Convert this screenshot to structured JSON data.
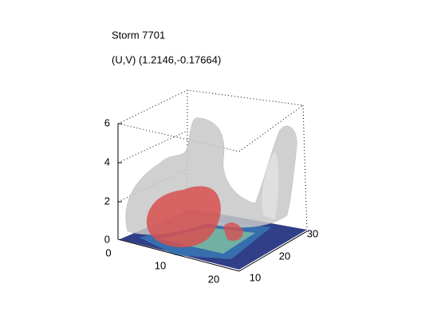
{
  "header": {
    "title": "Storm 7701",
    "subtitle": "(U,V) (1.2146,-0.17664)"
  },
  "axes": {
    "z_ticks": [
      "0",
      "2",
      "4",
      "6"
    ],
    "x_ticks": [
      "0",
      "10",
      "20"
    ],
    "y_ticks": [
      "10",
      "20",
      "30"
    ]
  }
}
